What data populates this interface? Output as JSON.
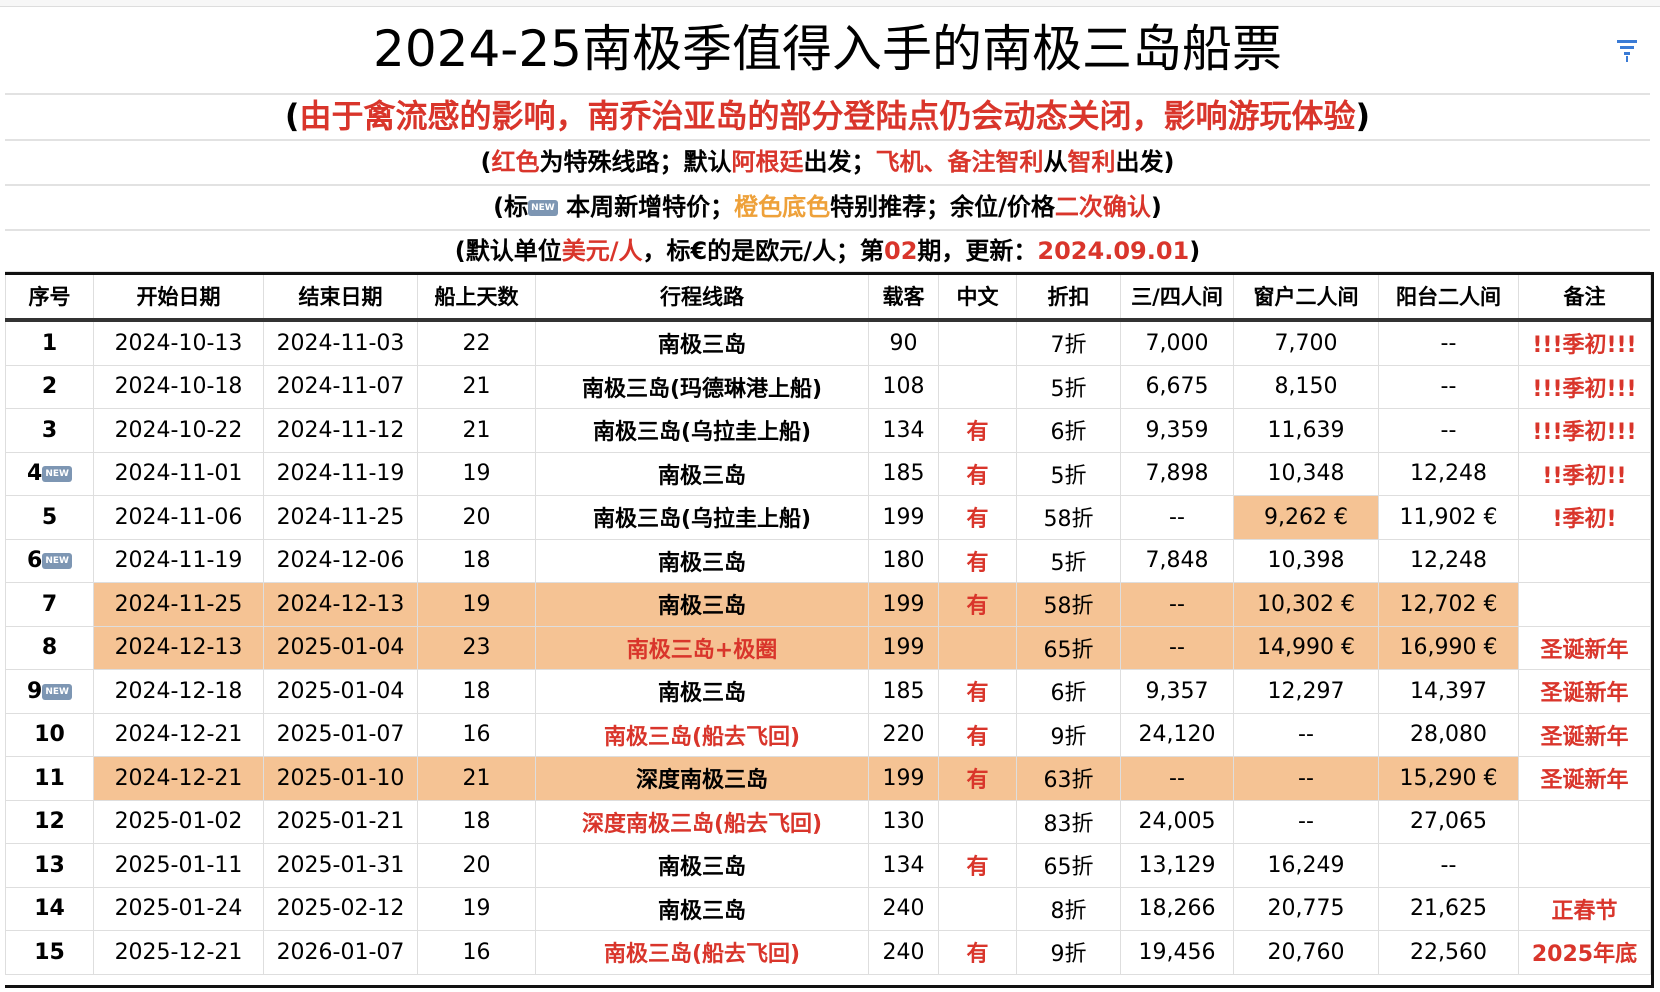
{
  "title": "2024-25南极季值得入手的南极三岛船票",
  "notes": {
    "line1": {
      "open": "(",
      "text": "由于禽流感的影响，南乔治亚岛的部分登陆点仍会动态关闭，影响游玩体验",
      "close": ")"
    },
    "line2": [
      "(",
      "红色",
      "为特殊线路；默认",
      "阿根廷",
      "出发；",
      "飞机、备注智利",
      "从",
      "智利",
      "出发)"
    ],
    "line3": [
      "(标",
      "NEW",
      "本周新增特价；",
      "橙色底色",
      "特别推荐；余位/价格",
      "二次确认",
      ")"
    ],
    "line4": [
      "(默认单位",
      "美元/人",
      "，标€的是欧元/人；第",
      "02",
      "期，更新：",
      "2024.09.01",
      ")"
    ]
  },
  "colors": {
    "red": "#d9352b",
    "orange_text": "#eea13a",
    "highlight": "#f5c394",
    "new_badge": "#7d96b3"
  },
  "filter_icon": "filter-icon",
  "headers": [
    "序号",
    "开始日期",
    "结束日期",
    "船上天数",
    "行程线路",
    "载客",
    "中文",
    "折扣",
    "三/四人间",
    "窗户二人间",
    "阳台二人间",
    "备注"
  ],
  "rows": [
    {
      "no": "1",
      "new": false,
      "start": "2024-10-13",
      "end": "2024-11-03",
      "days": "22",
      "route": "南极三岛",
      "route_red": false,
      "pax": "90",
      "cn": "",
      "disc": "7折",
      "quad": "7,000",
      "window": "7,700",
      "balcony": "--",
      "note": "!!!季初!!!",
      "hl": []
    },
    {
      "no": "2",
      "new": false,
      "start": "2024-10-18",
      "end": "2024-11-07",
      "days": "21",
      "route": "南极三岛(玛德琳港上船)",
      "route_red": false,
      "pax": "108",
      "cn": "",
      "disc": "5折",
      "quad": "6,675",
      "window": "8,150",
      "balcony": "--",
      "note": "!!!季初!!!",
      "hl": []
    },
    {
      "no": "3",
      "new": false,
      "start": "2024-10-22",
      "end": "2024-11-12",
      "days": "21",
      "route": "南极三岛(乌拉圭上船)",
      "route_red": false,
      "pax": "134",
      "cn": "有",
      "disc": "6折",
      "quad": "9,359",
      "window": "11,639",
      "balcony": "--",
      "note": "!!!季初!!!",
      "hl": []
    },
    {
      "no": "4",
      "new": true,
      "start": "2024-11-01",
      "end": "2024-11-19",
      "days": "19",
      "route": "南极三岛",
      "route_red": false,
      "pax": "185",
      "cn": "有",
      "disc": "5折",
      "quad": "7,898",
      "window": "10,348",
      "balcony": "12,248",
      "note": "!!季初!!",
      "hl": []
    },
    {
      "no": "5",
      "new": false,
      "start": "2024-11-06",
      "end": "2024-11-25",
      "days": "20",
      "route": "南极三岛(乌拉圭上船)",
      "route_red": false,
      "pax": "199",
      "cn": "有",
      "disc": "58折",
      "quad": "--",
      "window": "9,262 €",
      "balcony": "11,902 €",
      "note": "!季初!",
      "hl": [
        "window"
      ]
    },
    {
      "no": "6",
      "new": true,
      "start": "2024-11-19",
      "end": "2024-12-06",
      "days": "18",
      "route": "南极三岛",
      "route_red": false,
      "pax": "180",
      "cn": "有",
      "disc": "5折",
      "quad": "7,848",
      "window": "10,398",
      "balcony": "12,248",
      "note": "",
      "hl": []
    },
    {
      "no": "7",
      "new": false,
      "start": "2024-11-25",
      "end": "2024-12-13",
      "days": "19",
      "route": "南极三岛",
      "route_red": false,
      "pax": "199",
      "cn": "有",
      "disc": "58折",
      "quad": "--",
      "window": "10,302 €",
      "balcony": "12,702 €",
      "note": "",
      "hl": [
        "all"
      ]
    },
    {
      "no": "8",
      "new": false,
      "start": "2024-12-13",
      "end": "2025-01-04",
      "days": "23",
      "route": "南极三岛+极圈",
      "route_red": true,
      "pax": "199",
      "cn": "",
      "disc": "65折",
      "quad": "--",
      "window": "14,990 €",
      "balcony": "16,990 €",
      "note": "圣诞新年",
      "hl": [
        "all"
      ]
    },
    {
      "no": "9",
      "new": true,
      "start": "2024-12-18",
      "end": "2025-01-04",
      "days": "18",
      "route": "南极三岛",
      "route_red": false,
      "pax": "185",
      "cn": "有",
      "disc": "6折",
      "quad": "9,357",
      "window": "12,297",
      "balcony": "14,397",
      "note": "圣诞新年",
      "hl": []
    },
    {
      "no": "10",
      "new": false,
      "start": "2024-12-21",
      "end": "2025-01-07",
      "days": "16",
      "route": "南极三岛(船去飞回)",
      "route_red": true,
      "pax": "220",
      "cn": "有",
      "disc": "9折",
      "quad": "24,120",
      "window": "--",
      "balcony": "28,080",
      "note": "圣诞新年",
      "hl": []
    },
    {
      "no": "11",
      "new": false,
      "start": "2024-12-21",
      "end": "2025-01-10",
      "days": "21",
      "route": "深度南极三岛",
      "route_red": false,
      "pax": "199",
      "cn": "有",
      "disc": "63折",
      "quad": "--",
      "window": "--",
      "balcony": "15,290 €",
      "note": "圣诞新年",
      "hl": [
        "all"
      ]
    },
    {
      "no": "12",
      "new": false,
      "start": "2025-01-02",
      "end": "2025-01-21",
      "days": "18",
      "route": "深度南极三岛(船去飞回)",
      "route_red": true,
      "pax": "130",
      "cn": "",
      "disc": "83折",
      "quad": "24,005",
      "window": "--",
      "balcony": "27,065",
      "note": "",
      "hl": []
    },
    {
      "no": "13",
      "new": false,
      "start": "2025-01-11",
      "end": "2025-01-31",
      "days": "20",
      "route": "南极三岛",
      "route_red": false,
      "pax": "134",
      "cn": "有",
      "disc": "65折",
      "quad": "13,129",
      "window": "16,249",
      "balcony": "--",
      "note": "",
      "hl": []
    },
    {
      "no": "14",
      "new": false,
      "start": "2025-01-24",
      "end": "2025-02-12",
      "days": "19",
      "route": "南极三岛",
      "route_red": false,
      "pax": "240",
      "cn": "",
      "disc": "8折",
      "quad": "18,266",
      "window": "20,775",
      "balcony": "21,625",
      "note": "正春节",
      "hl": []
    },
    {
      "no": "15",
      "new": false,
      "start": "2025-12-21",
      "end": "2026-01-07",
      "days": "16",
      "route": "南极三岛(船去飞回)",
      "route_red": true,
      "pax": "240",
      "cn": "有",
      "disc": "9折",
      "quad": "19,456",
      "window": "20,760",
      "balcony": "22,560",
      "note": "2025年底",
      "hl": []
    }
  ]
}
